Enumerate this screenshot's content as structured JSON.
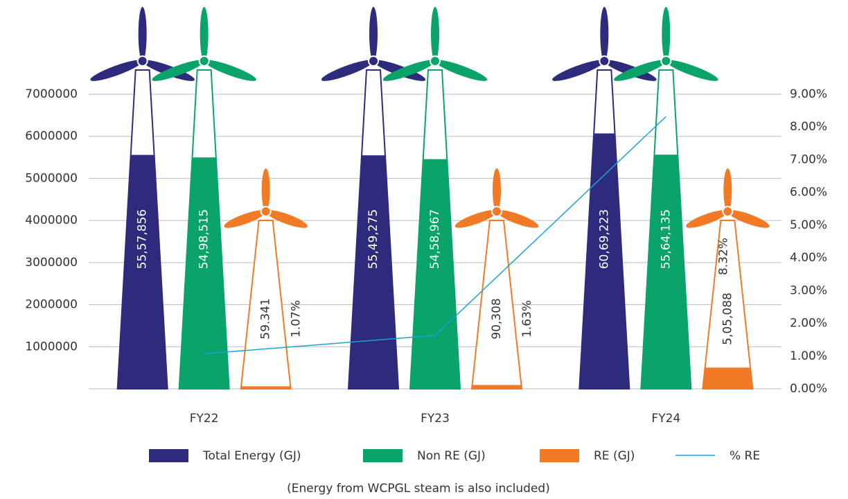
{
  "chart_data": {
    "type": "bar",
    "categories": [
      "FY22",
      "FY23",
      "FY24"
    ],
    "series": [
      {
        "name": "Total Energy (GJ)",
        "type": "bar",
        "color": "#2e2b7c",
        "values": [
          5557856,
          5549275,
          6069223
        ],
        "value_labels": [
          "55,57,856",
          "55,49,275",
          "60,69,223"
        ]
      },
      {
        "name": "Non RE (GJ)",
        "type": "bar",
        "color": "#0aa46b",
        "values": [
          5498515,
          5458967,
          5564135
        ],
        "value_labels": [
          "54,98,515",
          "54,58,967",
          "55,64,135"
        ]
      },
      {
        "name": "RE (GJ)",
        "type": "bar",
        "color": "#f07a25",
        "values": [
          59341,
          90308,
          505088
        ],
        "value_labels": [
          "59.341",
          "90,308",
          "5,05,088"
        ]
      },
      {
        "name": "% RE",
        "type": "line",
        "axis": "y2",
        "color": "#1da1d8",
        "values": [
          1.07,
          1.63,
          8.32
        ],
        "value_labels": [
          "1.07%",
          "1.63%",
          "8.32%"
        ]
      }
    ],
    "ylim": [
      0,
      7000000
    ],
    "yticks": [
      1000000,
      2000000,
      3000000,
      4000000,
      5000000,
      6000000,
      7000000
    ],
    "y2lim": [
      0,
      9
    ],
    "y2ticks": [
      {
        "value": 0,
        "label": "0.00%"
      },
      {
        "value": 1,
        "label": "1.00%"
      },
      {
        "value": 2,
        "label": "2.00%"
      },
      {
        "value": 3,
        "label": "3.00%"
      },
      {
        "value": 4,
        "label": "4.00%"
      },
      {
        "value": 5,
        "label": "5.00%"
      },
      {
        "value": 6,
        "label": "6.00%"
      },
      {
        "value": 7,
        "label": "7.00%"
      },
      {
        "value": 8,
        "label": "8.00%"
      },
      {
        "value": 9,
        "label": "9.00%"
      }
    ],
    "grid": true,
    "note": "(Energy from WCPGL steam is also included)"
  }
}
